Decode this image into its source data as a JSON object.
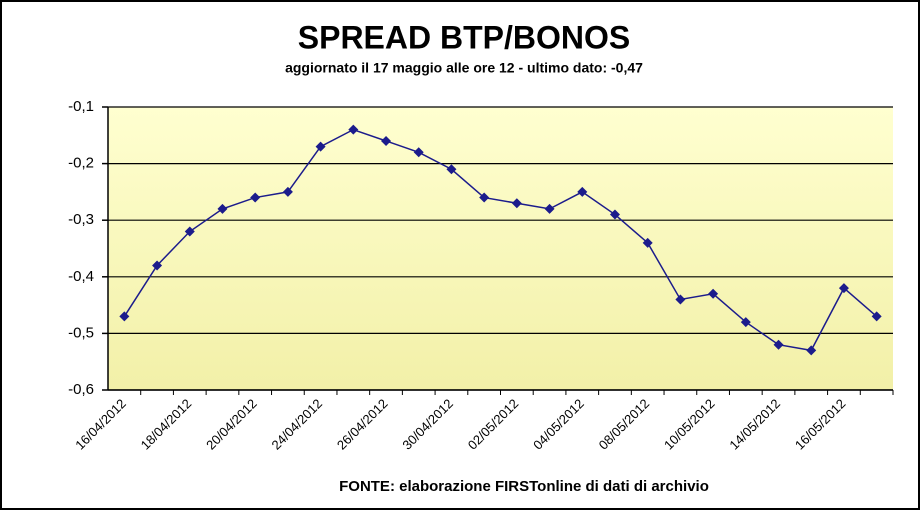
{
  "chart_data": {
    "type": "line",
    "title": "SPREAD BTP/BONOS",
    "subtitle": "aggiornato il 17 maggio alle ore 12 - ultimo dato: -0,47",
    "source": "FONTE:  elaborazione FIRSTonline  di dati di archivio",
    "categories": [
      "16/04/2012",
      null,
      "18/04/2012",
      null,
      "20/04/2012",
      null,
      "24/04/2012",
      null,
      "26/04/2012",
      null,
      "30/04/2012",
      null,
      "02/05/2012",
      null,
      "04/05/2012",
      null,
      "08/05/2012",
      null,
      "10/05/2012",
      null,
      "14/05/2012",
      null,
      "16/05/2012",
      null
    ],
    "series": [
      {
        "color": "#1c1c8c",
        "values": [
          -0.47,
          -0.38,
          -0.32,
          -0.28,
          -0.26,
          -0.25,
          -0.17,
          -0.14,
          -0.16,
          -0.18,
          -0.21,
          -0.26,
          -0.27,
          -0.28,
          -0.25,
          -0.29,
          -0.34,
          -0.44,
          -0.43,
          -0.48,
          -0.52,
          -0.53,
          -0.42,
          -0.47
        ]
      }
    ],
    "ylim": [
      -0.6,
      -0.1
    ],
    "yticks": [
      {
        "value": -0.6,
        "label": "-0,6"
      },
      {
        "value": -0.5,
        "label": "-0,5"
      },
      {
        "value": -0.4,
        "label": "-0,4"
      },
      {
        "value": -0.3,
        "label": "-0,3"
      },
      {
        "value": -0.2,
        "label": "-0,2"
      },
      {
        "value": -0.1,
        "label": "-0,1"
      }
    ],
    "grid": true
  }
}
